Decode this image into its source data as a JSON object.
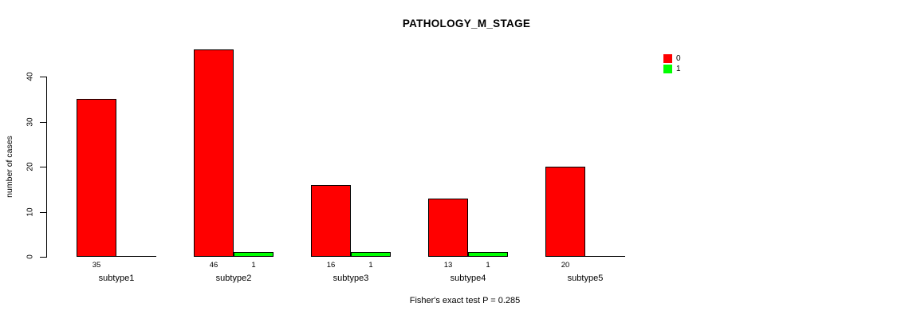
{
  "chart_data": {
    "type": "bar",
    "title": "PATHOLOGY_M_STAGE",
    "ylabel": "number of cases",
    "xlabel": "",
    "categories": [
      "subtype1",
      "subtype2",
      "subtype3",
      "subtype4",
      "subtype5"
    ],
    "series": [
      {
        "name": "0",
        "color": "#ff0000",
        "values": [
          35,
          46,
          16,
          13,
          20
        ]
      },
      {
        "name": "1",
        "color": "#00ff00",
        "values": [
          0,
          1,
          1,
          1,
          0
        ]
      }
    ],
    "yticks": [
      0,
      10,
      20,
      30,
      40
    ],
    "ylim": [
      0,
      46
    ],
    "grid": false,
    "legend_position": "top-right",
    "bar_value_labels": true,
    "caption": "Fisher's exact test P = 0.285"
  },
  "colors": {
    "background": "#ffffff",
    "axis": "#000000",
    "text": "#000000"
  }
}
